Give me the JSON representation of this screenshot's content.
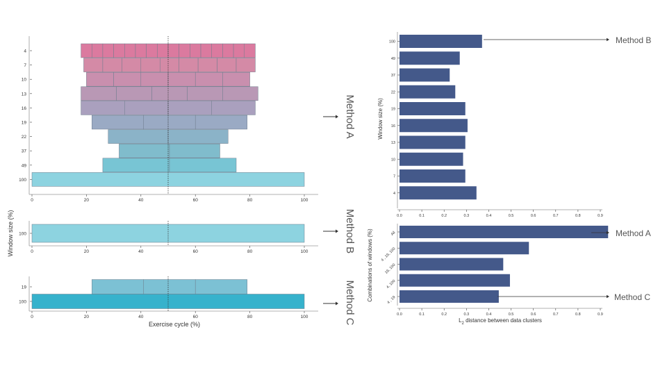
{
  "colors": {
    "bar_blue": "#44598a",
    "axis": "#444444",
    "ann_text": "#555555",
    "seg_stroke": "#6e7c8c",
    "row_colors": [
      "#db7a9f",
      "#d48aa6",
      "#c98fae",
      "#b998b5",
      "#aaa0be",
      "#9aaac4",
      "#8bb3c8",
      "#80bccc",
      "#78c5d4",
      "#8dd3e0"
    ],
    "method_b": "#8dd3e0",
    "method_c_19": "#7cc1d4",
    "method_c_100": "#36b2cc"
  },
  "annotations": {
    "method_a": "Method A",
    "method_b": "Method B",
    "method_c": "Method C"
  },
  "chart_data": [
    {
      "name": "exercise-cycle-segmentation",
      "type": "bar",
      "orientation": "horizontal",
      "title": "",
      "xlabel": "Exercise cycle (%)",
      "ylabel": "Window size (%)",
      "xlim": [
        0,
        100
      ],
      "xticks": [
        "0",
        "20",
        "40",
        "60",
        "80",
        "100"
      ],
      "vline": 50,
      "panels": [
        {
          "method": "A",
          "rows": [
            {
              "label": "4",
              "start": 18,
              "end": 82,
              "segments": 16
            },
            {
              "label": "7",
              "start": 19,
              "end": 82,
              "segments": 9
            },
            {
              "label": "10",
              "start": 20,
              "end": 80,
              "segments": 6
            },
            {
              "label": "13",
              "start": 18,
              "end": 83,
              "segments": 5
            },
            {
              "label": "16",
              "start": 18,
              "end": 82,
              "segments": 4
            },
            {
              "label": "19",
              "start": 22,
              "end": 79,
              "segments": 3
            },
            {
              "label": "22",
              "start": 28,
              "end": 72,
              "segments": 2
            },
            {
              "label": "37",
              "start": 32,
              "end": 69,
              "segments": 2
            },
            {
              "label": "49",
              "start": 26,
              "end": 75,
              "segments": 2
            },
            {
              "label": "100",
              "start": 0,
              "end": 100,
              "segments": 1
            }
          ]
        },
        {
          "method": "B",
          "rows": [
            {
              "label": "100",
              "start": 0,
              "end": 100,
              "segments": 1
            }
          ]
        },
        {
          "method": "C",
          "rows": [
            {
              "label": "19",
              "start": 22,
              "end": 79,
              "segments": 3
            },
            {
              "label": "100",
              "start": 0,
              "end": 100,
              "segments": 1
            }
          ]
        }
      ]
    },
    {
      "name": "window-size-distance",
      "type": "bar",
      "orientation": "horizontal",
      "title": "",
      "xlabel": "",
      "ylabel": "Window size (%)",
      "xlim": [
        0,
        0.9
      ],
      "xticks": [
        "0.0",
        "0.1",
        "0.2",
        "0.3",
        "0.4",
        "0.5",
        "0.6",
        "0.7",
        "0.8",
        "0.9"
      ],
      "categories": [
        "100",
        "49",
        "37",
        "22",
        "19",
        "16",
        "13",
        "10",
        "7",
        "4"
      ],
      "values": [
        0.37,
        0.27,
        0.225,
        0.25,
        0.295,
        0.305,
        0.295,
        0.285,
        0.295,
        0.345
      ]
    },
    {
      "name": "window-combination-distance",
      "type": "bar",
      "orientation": "horizontal",
      "title": "",
      "xlabel": "L",
      "xlabel_sub": "2",
      "xlabel_rest": " distance between data clusters",
      "ylabel": "Combinations of windows (%)",
      "xlim": [
        0,
        0.9
      ],
      "xticks": [
        "0.0",
        "0.1",
        "0.2",
        "0.3",
        "0.4",
        "0.5",
        "0.6",
        "0.7",
        "0.8",
        "0.9"
      ],
      "categories": [
        "All",
        "4 , 19, 100",
        "19, 100",
        "4, 100",
        "4 , 19"
      ],
      "values": [
        0.935,
        0.58,
        0.465,
        0.495,
        0.445
      ]
    }
  ]
}
